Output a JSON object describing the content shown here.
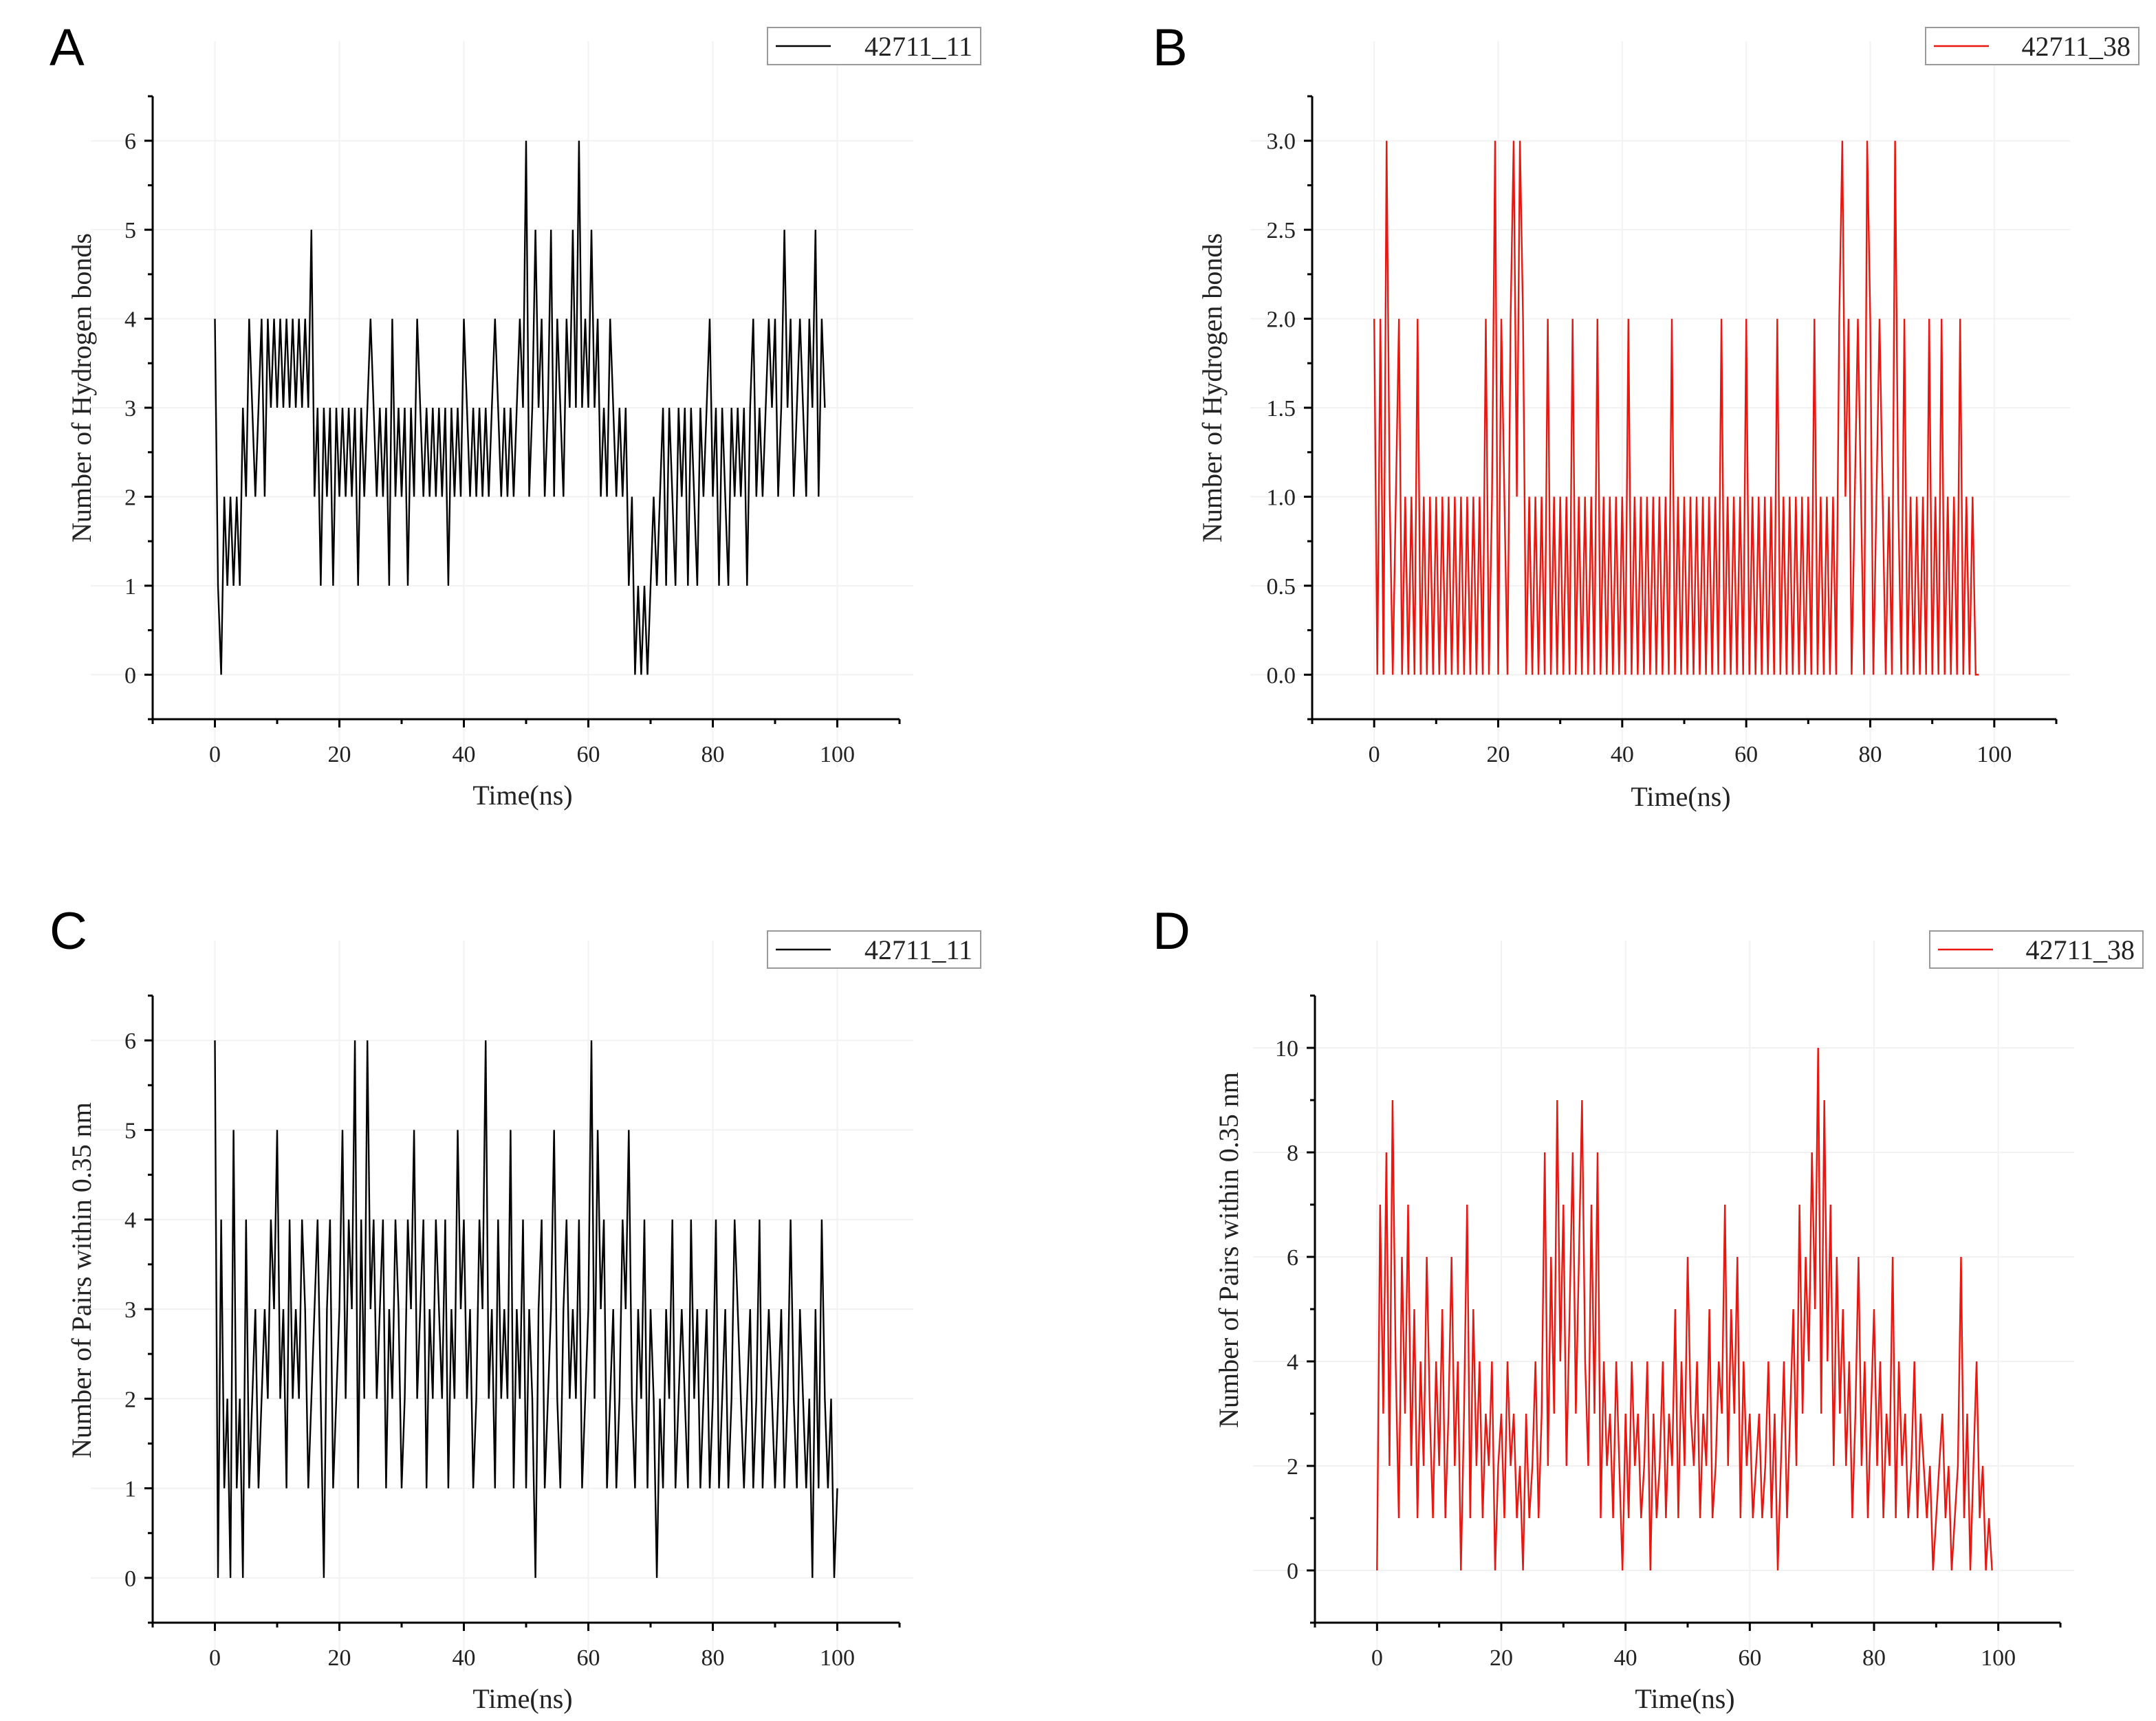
{
  "chart_data": [
    {
      "panel": "A",
      "type": "line",
      "color": "#000000",
      "xlabel": "Time(ns)",
      "ylabel": "Number of Hydrogen bonds",
      "xlim": [
        -10,
        110
      ],
      "ylim": [
        -0.5,
        6.5
      ],
      "xticks": [
        0,
        20,
        40,
        60,
        80,
        100
      ],
      "yticks": [
        0,
        1,
        2,
        3,
        4,
        5,
        6
      ],
      "ytick_labels": [
        "0",
        "1",
        "2",
        "3",
        "4",
        "5",
        "6"
      ],
      "legend": "top-right",
      "series": [
        {
          "name": "42711_11",
          "x_start": 0,
          "x_step": 0.5,
          "values": [
            4,
            1,
            0,
            2,
            1,
            2,
            1,
            2,
            1,
            3,
            2,
            4,
            3,
            2,
            3,
            4,
            2,
            4,
            3,
            4,
            3,
            4,
            3,
            4,
            3,
            4,
            3,
            4,
            3,
            4,
            3,
            5,
            2,
            3,
            1,
            3,
            2,
            3,
            1,
            3,
            2,
            3,
            2,
            3,
            2,
            3,
            1,
            3,
            2,
            3,
            4,
            3,
            2,
            3,
            2,
            3,
            1,
            4,
            2,
            3,
            2,
            3,
            1,
            3,
            2,
            4,
            3,
            2,
            3,
            2,
            3,
            2,
            3,
            2,
            3,
            1,
            3,
            2,
            3,
            2,
            4,
            3,
            2,
            3,
            2,
            3,
            2,
            3,
            2,
            3,
            4,
            3,
            2,
            3,
            2,
            3,
            2,
            3,
            4,
            3,
            6,
            2,
            3,
            5,
            3,
            4,
            2,
            3,
            5,
            2,
            4,
            3,
            2,
            4,
            3,
            5,
            3,
            6,
            3,
            4,
            3,
            5,
            3,
            4,
            2,
            3,
            2,
            4,
            3,
            2,
            3,
            2,
            3,
            1,
            2,
            0,
            1,
            0,
            1,
            0,
            1,
            2,
            1,
            2,
            3,
            1,
            3,
            2,
            1,
            3,
            2,
            3,
            1,
            3,
            2,
            1,
            3,
            2,
            3,
            4,
            2,
            3,
            1,
            3,
            2,
            1,
            3,
            2,
            3,
            2,
            3,
            1,
            3,
            4,
            2,
            3,
            2,
            3,
            4,
            3,
            4,
            2,
            3,
            5,
            3,
            4,
            2,
            3,
            4,
            3,
            2,
            4,
            3,
            5,
            2,
            4,
            3
          ]
        }
      ]
    },
    {
      "panel": "B",
      "type": "line",
      "color": "#e8170f",
      "xlabel": "Time(ns)",
      "ylabel": "Number of Hydrogen bonds",
      "xlim": [
        -10,
        110
      ],
      "ylim": [
        -0.25,
        3.25
      ],
      "xticks": [
        0,
        20,
        40,
        60,
        80,
        100
      ],
      "yticks": [
        0,
        0.5,
        1,
        1.5,
        2,
        2.5,
        3
      ],
      "ytick_labels": [
        "0.0",
        "0.5",
        "1.0",
        "1.5",
        "2.0",
        "2.5",
        "3.0"
      ],
      "legend": "top-right",
      "series": [
        {
          "name": "42711_38",
          "x_start": 0,
          "x_step": 0.5,
          "values": [
            2,
            0,
            2,
            0,
            3,
            1,
            0,
            1,
            2,
            0,
            1,
            0,
            1,
            0,
            2,
            0,
            1,
            0,
            1,
            0,
            1,
            0,
            1,
            0,
            1,
            0,
            1,
            0,
            1,
            0,
            1,
            0,
            1,
            0,
            1,
            0,
            2,
            0,
            1,
            3,
            0,
            2,
            1,
            0,
            2,
            3,
            1,
            3,
            2,
            0,
            1,
            0,
            1,
            0,
            1,
            0,
            2,
            0,
            1,
            0,
            1,
            0,
            1,
            0,
            2,
            0,
            1,
            0,
            1,
            0,
            1,
            0,
            2,
            0,
            1,
            0,
            1,
            0,
            1,
            0,
            1,
            0,
            2,
            0,
            1,
            0,
            1,
            0,
            1,
            0,
            1,
            0,
            1,
            0,
            1,
            0,
            2,
            0,
            1,
            0,
            1,
            0,
            1,
            0,
            1,
            0,
            1,
            0,
            1,
            0,
            1,
            0,
            2,
            0,
            1,
            0,
            1,
            0,
            1,
            0,
            2,
            0,
            1,
            0,
            1,
            0,
            1,
            0,
            1,
            0,
            2,
            0,
            1,
            0,
            1,
            0,
            1,
            0,
            1,
            0,
            1,
            0,
            2,
            0,
            1,
            0,
            1,
            0,
            1,
            0,
            2,
            3,
            1,
            2,
            0,
            1,
            2,
            1,
            0,
            3,
            2,
            0,
            1,
            2,
            1,
            0,
            1,
            0,
            3,
            1,
            0,
            2,
            0,
            1,
            0,
            1,
            0,
            1,
            0,
            2,
            0,
            1,
            0,
            2,
            0,
            1,
            0,
            1,
            0,
            2,
            0,
            1,
            0,
            1,
            0,
            0
          ]
        }
      ]
    },
    {
      "panel": "C",
      "type": "line",
      "color": "#000000",
      "xlabel": "Time(ns)",
      "ylabel": "Number of Pairs within 0.35 nm",
      "xlim": [
        -10,
        110
      ],
      "ylim": [
        -0.5,
        6.5
      ],
      "xticks": [
        0,
        20,
        40,
        60,
        80,
        100
      ],
      "yticks": [
        0,
        1,
        2,
        3,
        4,
        5,
        6
      ],
      "ytick_labels": [
        "0",
        "1",
        "2",
        "3",
        "4",
        "5",
        "6"
      ],
      "legend": "top-right",
      "series": [
        {
          "name": "42711_11",
          "x_start": 0,
          "x_step": 0.5,
          "values": [
            6,
            0,
            4,
            1,
            2,
            0,
            5,
            1,
            2,
            0,
            4,
            1,
            2,
            3,
            1,
            2,
            3,
            2,
            4,
            3,
            5,
            2,
            3,
            1,
            4,
            2,
            3,
            2,
            4,
            3,
            1,
            2,
            3,
            4,
            2,
            0,
            3,
            4,
            1,
            2,
            3,
            5,
            2,
            4,
            3,
            6,
            1,
            4,
            2,
            6,
            3,
            4,
            2,
            3,
            4,
            1,
            3,
            2,
            4,
            3,
            1,
            2,
            4,
            3,
            5,
            2,
            3,
            4,
            1,
            3,
            2,
            4,
            3,
            2,
            4,
            1,
            3,
            2,
            5,
            3,
            4,
            2,
            3,
            1,
            2,
            4,
            3,
            6,
            2,
            3,
            1,
            4,
            2,
            3,
            2,
            5,
            1,
            3,
            2,
            4,
            1,
            3,
            2,
            0,
            3,
            4,
            1,
            2,
            3,
            5,
            2,
            1,
            3,
            4,
            2,
            3,
            2,
            4,
            1,
            2,
            3,
            6,
            2,
            5,
            3,
            4,
            1,
            2,
            3,
            1,
            2,
            4,
            3,
            5,
            2,
            1,
            3,
            2,
            4,
            1,
            3,
            2,
            0,
            2,
            1,
            3,
            2,
            4,
            1,
            2,
            3,
            2,
            1,
            4,
            2,
            3,
            1,
            2,
            3,
            1,
            2,
            4,
            1,
            2,
            3,
            1,
            2,
            4,
            3,
            2,
            1,
            2,
            3,
            1,
            2,
            4,
            1,
            2,
            3,
            2,
            1,
            2,
            3,
            1,
            2,
            4,
            2,
            1,
            3,
            2,
            1,
            2,
            0,
            3,
            1,
            4,
            2,
            1,
            2,
            0,
            1
          ]
        }
      ]
    },
    {
      "panel": "D",
      "type": "line",
      "color": "#e8170f",
      "xlabel": "Time(ns)",
      "ylabel": "Number of Pairs within 0.35 nm",
      "xlim": [
        -10,
        110
      ],
      "ylim": [
        -1,
        11
      ],
      "xticks": [
        0,
        20,
        40,
        60,
        80,
        100
      ],
      "yticks": [
        0,
        2,
        4,
        6,
        8,
        10
      ],
      "ytick_labels": [
        "0",
        "2",
        "4",
        "6",
        "8",
        "10"
      ],
      "legend": "top-right",
      "series": [
        {
          "name": "42711_38",
          "x_start": 0,
          "x_step": 0.5,
          "values": [
            0,
            7,
            3,
            8,
            2,
            9,
            4,
            1,
            6,
            3,
            7,
            2,
            5,
            1,
            4,
            2,
            6,
            3,
            1,
            4,
            2,
            5,
            1,
            3,
            6,
            2,
            4,
            0,
            3,
            7,
            1,
            5,
            2,
            4,
            1,
            3,
            2,
            4,
            0,
            2,
            3,
            1,
            4,
            2,
            3,
            1,
            2,
            0,
            3,
            1,
            2,
            4,
            1,
            3,
            8,
            2,
            6,
            3,
            9,
            4,
            7,
            2,
            5,
            8,
            3,
            6,
            9,
            4,
            2,
            7,
            3,
            8,
            1,
            4,
            2,
            3,
            1,
            4,
            2,
            0,
            3,
            1,
            4,
            2,
            3,
            1,
            2,
            4,
            0,
            3,
            1,
            2,
            4,
            1,
            3,
            2,
            5,
            1,
            4,
            2,
            6,
            3,
            2,
            4,
            1,
            3,
            2,
            5,
            1,
            2,
            4,
            3,
            7,
            2,
            5,
            3,
            6,
            1,
            4,
            2,
            3,
            1,
            2,
            3,
            1,
            2,
            4,
            1,
            3,
            0,
            2,
            4,
            1,
            3,
            5,
            2,
            7,
            3,
            6,
            4,
            8,
            5,
            10,
            3,
            9,
            4,
            7,
            2,
            6,
            3,
            5,
            2,
            4,
            1,
            3,
            6,
            2,
            4,
            1,
            3,
            5,
            2,
            4,
            1,
            3,
            2,
            6,
            1,
            4,
            2,
            3,
            1,
            2,
            4,
            1,
            3,
            2,
            1,
            2,
            0,
            1,
            2,
            3,
            1,
            2,
            0,
            1,
            2,
            6,
            1,
            3,
            0,
            2,
            4,
            1,
            2,
            0,
            1,
            0
          ]
        }
      ]
    }
  ]
}
